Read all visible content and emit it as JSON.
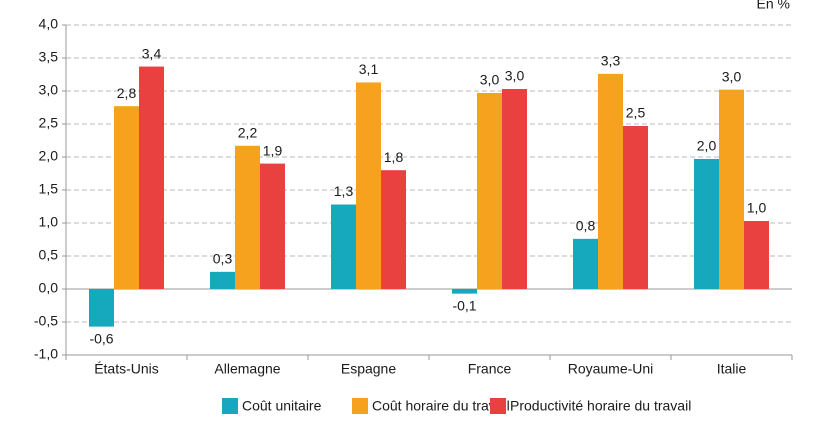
{
  "chart_data": {
    "type": "bar",
    "annotation": "En %",
    "categories": [
      "États-Unis",
      "Allemagne",
      "Espagne",
      "France",
      "Royaume-Uni",
      "Italie"
    ],
    "series": [
      {
        "name": "Coût unitaire",
        "color": "#16a8bd",
        "values": [
          -0.57,
          0.26,
          1.28,
          -0.07,
          0.76,
          1.97
        ],
        "value_labels": [
          "-0,6",
          "0,3",
          "1,3",
          "-0,1",
          "0,8",
          "2,0"
        ]
      },
      {
        "name": "Coût horaire du travail",
        "color": "#f7a21e",
        "values": [
          2.77,
          2.17,
          3.13,
          2.97,
          3.26,
          3.02
        ],
        "value_labels": [
          "2,8",
          "2,2",
          "3,1",
          "3,0",
          "3,3",
          "3,0"
        ]
      },
      {
        "name": "Productivité horaire du travail",
        "color": "#e8413f",
        "values": [
          3.37,
          1.9,
          1.8,
          3.03,
          2.47,
          1.03
        ],
        "value_labels": [
          "3,4",
          "1,9",
          "1,8",
          "3,0",
          "2,5",
          "1,0"
        ]
      }
    ],
    "ylim": [
      -1.0,
      4.0
    ],
    "yticks": [
      {
        "value": -1.0,
        "label": "-1,0"
      },
      {
        "value": -0.5,
        "label": "-0,5"
      },
      {
        "value": 0.0,
        "label": "0,0"
      },
      {
        "value": 0.5,
        "label": "0,5"
      },
      {
        "value": 1.0,
        "label": "1,0"
      },
      {
        "value": 1.5,
        "label": "1,5"
      },
      {
        "value": 2.0,
        "label": "2,0"
      },
      {
        "value": 2.5,
        "label": "2,5"
      },
      {
        "value": 3.0,
        "label": "3,0"
      },
      {
        "value": 3.5,
        "label": "3,5"
      },
      {
        "value": 4.0,
        "label": "4,0"
      }
    ],
    "grid": true
  }
}
